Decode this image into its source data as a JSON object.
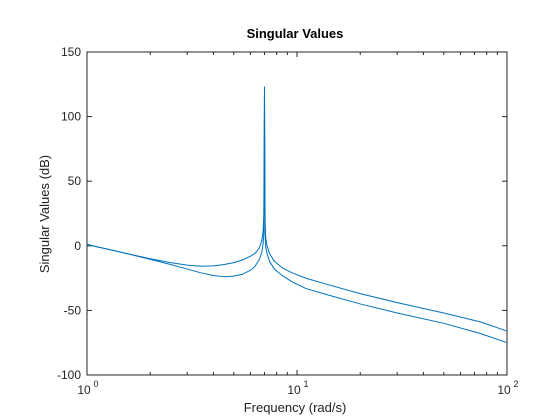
{
  "chart_data": {
    "type": "line",
    "title": "Singular Values",
    "xlabel": "Frequency (rad/s)",
    "ylabel": "Singular Values (dB)",
    "xscale": "log",
    "xlim": [
      1,
      100
    ],
    "ylim": [
      -100,
      150
    ],
    "grid": false,
    "legend": "none",
    "x_ticks": [
      {
        "value": 1,
        "base": "10",
        "exp": "0"
      },
      {
        "value": 10,
        "base": "10",
        "exp": "1"
      },
      {
        "value": 100,
        "base": "10",
        "exp": "2"
      }
    ],
    "y_ticks": [
      -100,
      -50,
      0,
      50,
      100,
      150
    ],
    "series_color": "#0072bd",
    "series": [
      {
        "x": [
          1,
          1.5,
          2,
          2.5,
          3,
          3.5,
          4,
          4.5,
          5,
          5.5,
          6,
          6.3,
          6.6,
          6.8,
          6.9,
          6.95,
          7.0,
          7.05,
          7.1,
          7.2,
          7.4,
          7.8,
          8.5,
          9.5,
          11,
          14,
          20,
          30,
          50,
          75,
          100
        ],
        "values": [
          1,
          -5.5,
          -10,
          -13,
          -15,
          -15.8,
          -15.5,
          -14.5,
          -13,
          -11,
          -8,
          -6,
          -2,
          4,
          12,
          24,
          123,
          18,
          6,
          0,
          -6,
          -12,
          -17,
          -21,
          -25,
          -30,
          -37,
          -44,
          -52,
          -59,
          -66
        ]
      },
      {
        "x": [
          1,
          1.5,
          2,
          2.5,
          3,
          3.5,
          4,
          4.5,
          5,
          5.5,
          6,
          6.3,
          6.6,
          6.8,
          6.9,
          6.95,
          7.0,
          7.05,
          7.1,
          7.2,
          7.4,
          7.8,
          8.5,
          9.5,
          11,
          14,
          20,
          30,
          50,
          75,
          100
        ],
        "values": [
          1,
          -5.5,
          -10.5,
          -14.5,
          -18,
          -21,
          -23,
          -24,
          -23.5,
          -22,
          -19,
          -16,
          -11,
          -5,
          2,
          10,
          115,
          8,
          -1,
          -6,
          -12,
          -18,
          -23,
          -28,
          -33,
          -38,
          -45,
          -52,
          -60,
          -68,
          -75
        ]
      }
    ]
  }
}
